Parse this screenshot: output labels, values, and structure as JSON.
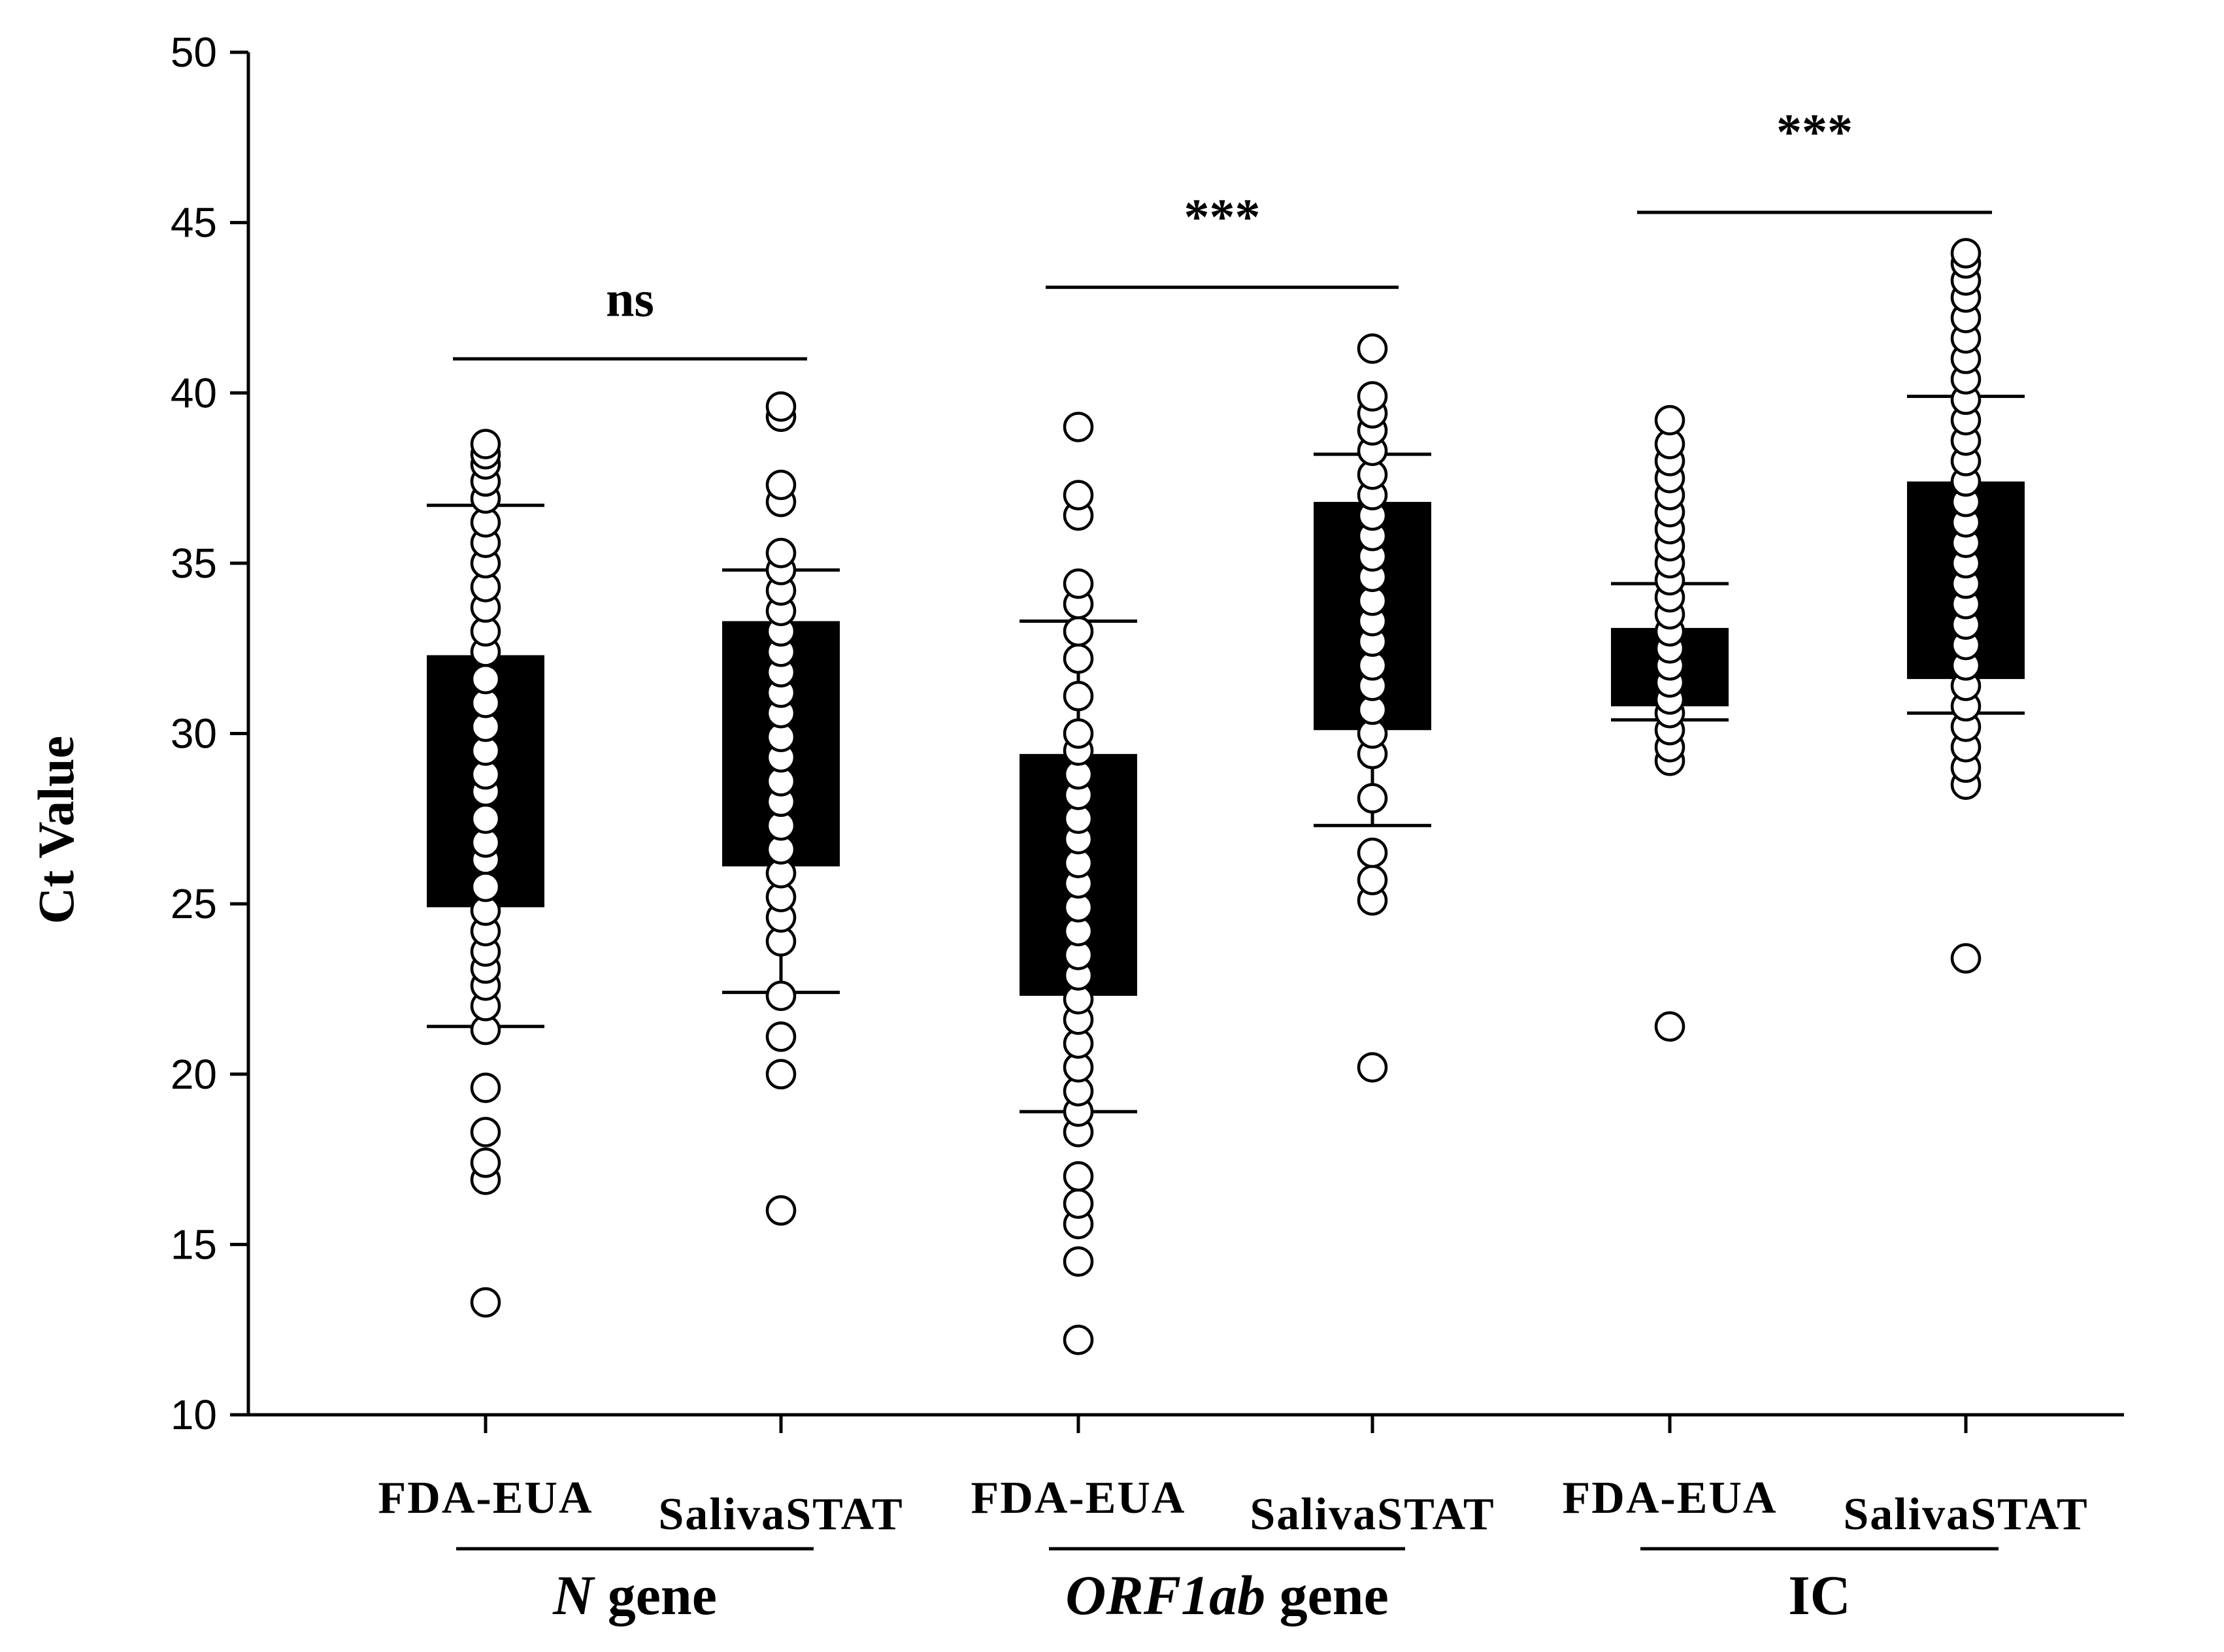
{
  "chart_data": {
    "type": "box",
    "ylabel": "Ct Value",
    "ylim": [
      10,
      50
    ],
    "yticks": [
      10,
      15,
      20,
      25,
      30,
      35,
      40,
      45,
      50
    ],
    "grid": false,
    "series": [
      {
        "category": "FDA-EUA",
        "group": "N",
        "q1": 24.9,
        "q3": 32.3,
        "whisker_low": 21.4,
        "whisker_high": 36.7,
        "points": [
          13.3,
          16.9,
          17.4,
          18.3,
          19.6,
          21.3,
          22.0,
          22.6,
          23.1,
          23.6,
          24.2,
          24.8,
          25.5,
          26.3,
          26.8,
          27.5,
          28.3,
          28.8,
          29.5,
          30.2,
          30.9,
          31.6,
          32.4,
          33.0,
          33.7,
          34.3,
          35.0,
          35.6,
          36.2,
          36.9,
          37.4,
          37.9,
          38.2,
          38.5
        ]
      },
      {
        "category": "SalivaSTAT",
        "group": "N",
        "q1": 26.1,
        "q3": 33.3,
        "whisker_low": 22.4,
        "whisker_high": 34.8,
        "points": [
          16.0,
          20.0,
          21.1,
          22.3,
          23.9,
          24.6,
          25.2,
          25.9,
          26.6,
          27.3,
          28.0,
          28.6,
          29.3,
          29.9,
          30.6,
          31.2,
          31.8,
          32.4,
          33.0,
          33.6,
          34.2,
          34.8,
          35.3,
          36.8,
          37.3,
          39.3,
          39.6
        ]
      },
      {
        "category": "FDA-EUA",
        "group": "ORF1ab",
        "q1": 22.3,
        "q3": 29.4,
        "whisker_low": 18.9,
        "whisker_high": 33.3,
        "points": [
          12.2,
          14.5,
          15.6,
          16.2,
          17.0,
          18.3,
          18.9,
          19.5,
          20.2,
          20.9,
          21.6,
          22.2,
          22.9,
          23.5,
          24.2,
          24.9,
          25.6,
          26.2,
          26.9,
          27.5,
          28.2,
          28.8,
          29.5,
          30.0,
          31.1,
          32.2,
          33.0,
          33.8,
          34.4,
          36.4,
          37.0,
          39.0
        ]
      },
      {
        "category": "SalivaSTAT",
        "group": "ORF1ab",
        "q1": 30.1,
        "q3": 36.8,
        "whisker_low": 27.3,
        "whisker_high": 38.2,
        "points": [
          20.2,
          25.1,
          25.7,
          26.5,
          28.1,
          29.4,
          30.0,
          30.7,
          31.4,
          32.0,
          32.7,
          33.3,
          33.9,
          34.6,
          35.2,
          35.8,
          36.4,
          37.0,
          37.6,
          38.3,
          38.9,
          39.4,
          39.9,
          41.3
        ]
      },
      {
        "category": "FDA-EUA",
        "group": "IC",
        "q1": 30.8,
        "q3": 33.1,
        "whisker_low": 30.4,
        "whisker_high": 34.4,
        "points": [
          21.4,
          29.2,
          29.6,
          30.1,
          30.6,
          31.0,
          31.5,
          32.0,
          32.5,
          33.0,
          33.5,
          34.0,
          34.5,
          35.0,
          35.5,
          36.0,
          36.5,
          37.0,
          37.5,
          38.0,
          38.5,
          39.2
        ]
      },
      {
        "category": "SalivaSTAT",
        "group": "IC",
        "q1": 31.6,
        "q3": 37.4,
        "whisker_low": 30.6,
        "whisker_high": 39.9,
        "points": [
          23.4,
          28.5,
          29.0,
          29.6,
          30.2,
          30.8,
          31.4,
          32.0,
          32.6,
          33.2,
          33.8,
          34.4,
          35.0,
          35.6,
          36.2,
          36.8,
          37.4,
          38.0,
          38.6,
          39.2,
          39.8,
          40.4,
          41.0,
          41.6,
          42.2,
          42.8,
          43.3,
          43.8,
          44.1
        ]
      }
    ],
    "groups": [
      {
        "name": "N",
        "suffix": "gene",
        "italic_part": "N"
      },
      {
        "name": "ORF1ab",
        "suffix": "gene",
        "italic_part": "ORF1ab"
      },
      {
        "name": "IC",
        "suffix": "",
        "italic_part": ""
      }
    ],
    "significance": [
      {
        "label": "ns",
        "y": 41.0,
        "label_y": 42.8
      },
      {
        "label": "***",
        "y": 43.1,
        "label_y": 45.2
      },
      {
        "label": "***",
        "y": 45.3,
        "label_y": 47.7
      }
    ]
  }
}
